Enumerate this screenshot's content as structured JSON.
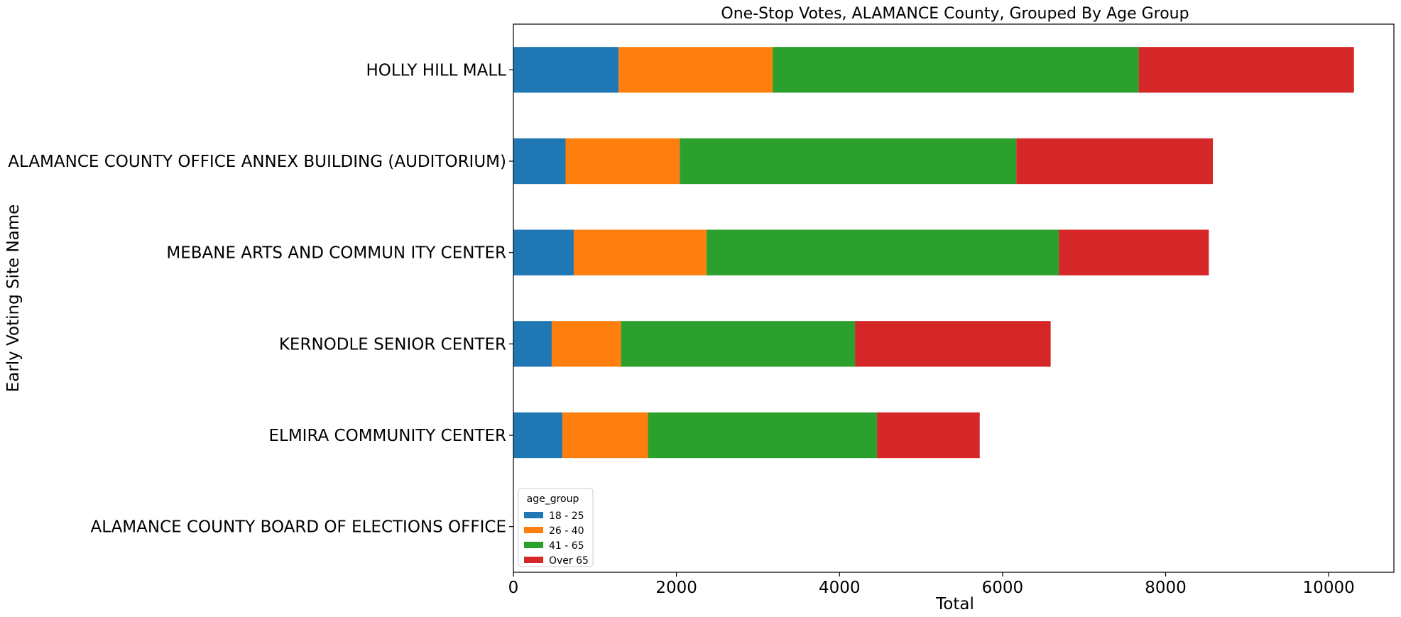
{
  "chart_data": {
    "type": "bar",
    "orientation": "horizontal",
    "stacked": true,
    "title": "One-Stop Votes, ALAMANCE County, Grouped By Age Group",
    "xlabel": "Total",
    "ylabel": "Early Voting Site Name",
    "xlim": [
      0,
      10800
    ],
    "xticks": [
      0,
      2000,
      4000,
      6000,
      8000,
      10000
    ],
    "xtick_labels": [
      "0",
      "2000",
      "4000",
      "6000",
      "8000",
      "10000"
    ],
    "grid": false,
    "categories": [
      "HOLLY HILL MALL",
      "ALAMANCE COUNTY OFFICE ANNEX BUILDING (AUDITORIUM)",
      "MEBANE ARTS AND COMMUN ITY CENTER",
      "KERNODLE SENIOR CENTER",
      "ELMIRA COMMUNITY CENTER",
      "ALAMANCE COUNTY BOARD OF ELECTIONS OFFICE"
    ],
    "series": [
      {
        "name": "18 - 25",
        "color": "#1f77b4",
        "values": [
          1290,
          640,
          740,
          470,
          600,
          0
        ]
      },
      {
        "name": "26 - 40",
        "color": "#ff7f0e",
        "values": [
          1890,
          1400,
          1630,
          850,
          1050,
          0
        ]
      },
      {
        "name": "41 - 65",
        "color": "#2ca02c",
        "values": [
          4490,
          4130,
          4320,
          2870,
          2810,
          0
        ]
      },
      {
        "name": "Over 65",
        "color": "#d62728",
        "values": [
          2640,
          2410,
          1840,
          2400,
          1260,
          0
        ]
      }
    ],
    "legend": {
      "title": "age_group",
      "placement": "lower-left"
    }
  }
}
